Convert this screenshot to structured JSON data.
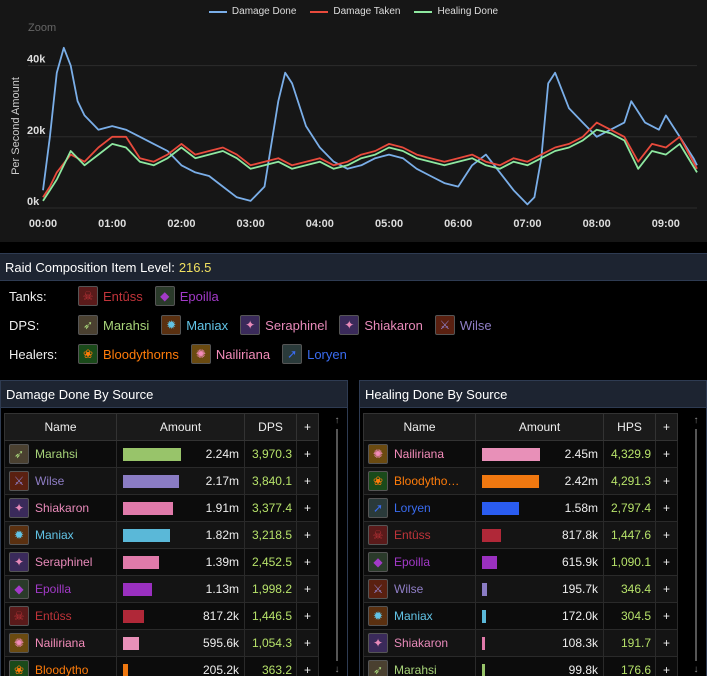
{
  "chart_data": {
    "type": "line",
    "legend": [
      "Damage Done",
      "Damage Taken",
      "Healing Done"
    ],
    "colors": [
      "#7aaee8",
      "#e84a3c",
      "#8ee8a0"
    ],
    "ylabel": "Per Second Amount",
    "zoom_label": "Zoom",
    "yticks": [
      "40k",
      "20k",
      "0k"
    ],
    "ytick_values": [
      40000,
      20000,
      0
    ],
    "ylim": [
      0,
      50000
    ],
    "xticks": [
      "00:00",
      "01:00",
      "02:00",
      "03:00",
      "04:00",
      "05:00",
      "06:00",
      "07:00",
      "08:00",
      "09:00"
    ],
    "xlim_minutes": [
      0,
      9.45
    ],
    "series": [
      {
        "name": "Damage Done",
        "x": [
          0,
          0.1,
          0.2,
          0.3,
          0.4,
          0.5,
          0.6,
          0.8,
          1.0,
          1.2,
          1.4,
          1.6,
          1.8,
          2.0,
          2.2,
          2.4,
          2.6,
          2.8,
          3.0,
          3.2,
          3.4,
          3.5,
          3.6,
          3.8,
          4.0,
          4.2,
          4.4,
          4.6,
          4.8,
          5.0,
          5.2,
          5.4,
          5.6,
          5.8,
          6.0,
          6.2,
          6.4,
          6.6,
          6.8,
          7.0,
          7.1,
          7.2,
          7.3,
          7.4,
          7.6,
          7.8,
          8.0,
          8.2,
          8.4,
          8.5,
          8.7,
          8.9,
          9.0,
          9.2,
          9.4,
          9.45
        ],
        "y": [
          5000,
          20000,
          38000,
          45000,
          40000,
          30000,
          26000,
          22000,
          23000,
          22000,
          20000,
          18000,
          16000,
          12000,
          10000,
          9000,
          6000,
          3000,
          2000,
          6000,
          30000,
          38000,
          35000,
          23000,
          17000,
          13000,
          11000,
          12000,
          14000,
          15000,
          14000,
          11000,
          9000,
          7000,
          6000,
          12000,
          15000,
          10000,
          5000,
          1000,
          3000,
          14000,
          35000,
          38000,
          28000,
          24000,
          20000,
          22000,
          24000,
          30000,
          24000,
          22000,
          26000,
          20000,
          14000,
          12000
        ]
      },
      {
        "name": "Damage Taken",
        "x": [
          0,
          0.1,
          0.2,
          0.4,
          0.6,
          0.8,
          1.0,
          1.2,
          1.4,
          1.6,
          1.8,
          2.0,
          2.2,
          2.4,
          2.6,
          2.8,
          3.0,
          3.2,
          3.4,
          3.6,
          3.8,
          4.0,
          4.2,
          4.4,
          4.6,
          4.8,
          5.0,
          5.2,
          5.4,
          5.6,
          5.8,
          6.0,
          6.2,
          6.4,
          6.6,
          6.8,
          7.0,
          7.2,
          7.4,
          7.6,
          7.8,
          8.0,
          8.2,
          8.4,
          8.6,
          8.8,
          9.0,
          9.2,
          9.45
        ],
        "y": [
          3000,
          6000,
          10000,
          15000,
          13000,
          17000,
          20000,
          20000,
          14000,
          13000,
          15000,
          18000,
          15000,
          16000,
          17000,
          15000,
          12000,
          13000,
          14000,
          12000,
          13000,
          14000,
          12000,
          13000,
          15000,
          16000,
          18000,
          17000,
          15000,
          14000,
          13000,
          14000,
          15000,
          13000,
          12000,
          14000,
          13000,
          15000,
          17000,
          18000,
          20000,
          24000,
          22000,
          20000,
          13000,
          18000,
          17000,
          20000,
          11000
        ]
      },
      {
        "name": "Healing Done",
        "x": [
          0,
          0.1,
          0.2,
          0.4,
          0.6,
          0.8,
          1.0,
          1.2,
          1.4,
          1.6,
          1.8,
          2.0,
          2.2,
          2.4,
          2.6,
          2.8,
          3.0,
          3.2,
          3.4,
          3.6,
          3.8,
          4.0,
          4.2,
          4.4,
          4.6,
          4.8,
          5.0,
          5.2,
          5.4,
          5.6,
          5.8,
          6.0,
          6.2,
          6.4,
          6.6,
          6.8,
          7.0,
          7.2,
          7.4,
          7.6,
          7.8,
          8.0,
          8.2,
          8.4,
          8.6,
          8.8,
          9.0,
          9.2,
          9.45
        ],
        "y": [
          2000,
          5000,
          8000,
          16000,
          12000,
          15000,
          18000,
          17000,
          13000,
          12000,
          14000,
          17000,
          14000,
          15000,
          16000,
          14000,
          11000,
          12000,
          13000,
          11000,
          12000,
          13000,
          11000,
          12000,
          14000,
          15000,
          17000,
          16000,
          14000,
          13000,
          12000,
          13000,
          14000,
          12000,
          11000,
          13000,
          12000,
          14000,
          16000,
          17000,
          19000,
          22000,
          21000,
          19000,
          11000,
          16000,
          15000,
          18000,
          10000
        ]
      }
    ]
  },
  "composition": {
    "title": "Raid Composition Item Level:",
    "ilvl": "216.5",
    "rows": [
      {
        "label": "Tanks:",
        "members": [
          {
            "name": "Entûss",
            "color": "#c0343a",
            "icon": "blood-dk-icon",
            "glyph": "☠",
            "bg": "#5a1a1a"
          },
          {
            "name": "Epoilla",
            "color": "#a23ac8",
            "icon": "demon-hunter-icon",
            "glyph": "◆",
            "bg": "#2a3a2a"
          }
        ]
      },
      {
        "label": "DPS:",
        "members": [
          {
            "name": "Marahsi",
            "color": "#a8d47a",
            "icon": "hunter-icon",
            "glyph": "➶",
            "bg": "#4a4030"
          },
          {
            "name": "Maniax",
            "color": "#62c4e6",
            "icon": "fire-mage-icon",
            "glyph": "✹",
            "bg": "#5a3010"
          },
          {
            "name": "Seraphinel",
            "color": "#e88aba",
            "icon": "warlock-icon",
            "glyph": "✦",
            "bg": "#3a2a5a"
          },
          {
            "name": "Shiakaron",
            "color": "#e88aba",
            "icon": "shadow-icon",
            "glyph": "✦",
            "bg": "#3a2a5a"
          },
          {
            "name": "Wilse",
            "color": "#8f7ec6",
            "icon": "fury-warrior-icon",
            "glyph": "⚔",
            "bg": "#5a2010"
          }
        ]
      },
      {
        "label": "Healers:",
        "members": [
          {
            "name": "Bloodythorns",
            "color": "#ff7c0a",
            "icon": "druid-icon",
            "glyph": "❀",
            "bg": "#1a4a1a"
          },
          {
            "name": "Nailiriana",
            "color": "#f48cba",
            "icon": "holy-paladin-icon",
            "glyph": "✺",
            "bg": "#6a4a10"
          },
          {
            "name": "Loryen",
            "color": "#3a6cf0",
            "icon": "monk-icon",
            "glyph": "➚",
            "bg": "#2a3a3a"
          }
        ]
      }
    ]
  },
  "damage": {
    "title": "Damage Done By Source",
    "headers": [
      "Name",
      "Amount",
      "DPS",
      "+"
    ],
    "rows": [
      {
        "name": "Marahsi",
        "color": "#a8d47a",
        "icon": "hunter-icon",
        "glyph": "➶",
        "bg": "#4a4030",
        "amount": "2.24m",
        "rate": "3,970.3",
        "pct": 1.0,
        "barcolor": "#98c46a"
      },
      {
        "name": "Wilse",
        "color": "#8f7ec6",
        "icon": "fury-warrior-icon",
        "glyph": "⚔",
        "bg": "#5a2010",
        "amount": "2.17m",
        "rate": "3,840.1",
        "pct": 0.97,
        "barcolor": "#8a7cc4"
      },
      {
        "name": "Shiakaron",
        "color": "#e88aba",
        "icon": "shadow-icon",
        "glyph": "✦",
        "bg": "#3a2a5a",
        "amount": "1.91m",
        "rate": "3,377.4",
        "pct": 0.86,
        "barcolor": "#e07aaa"
      },
      {
        "name": "Maniax",
        "color": "#62c4e6",
        "icon": "fire-mage-icon",
        "glyph": "✹",
        "bg": "#5a3010",
        "amount": "1.82m",
        "rate": "3,218.5",
        "pct": 0.81,
        "barcolor": "#5ab8d8"
      },
      {
        "name": "Seraphinel",
        "color": "#e88aba",
        "icon": "warlock-icon",
        "glyph": "✦",
        "bg": "#3a2a5a",
        "amount": "1.39m",
        "rate": "2,452.5",
        "pct": 0.62,
        "barcolor": "#e07aaa"
      },
      {
        "name": "Epoilla",
        "color": "#a23ac8",
        "icon": "demon-hunter-icon",
        "glyph": "◆",
        "bg": "#2a3a2a",
        "amount": "1.13m",
        "rate": "1,998.2",
        "pct": 0.5,
        "barcolor": "#9a30c0"
      },
      {
        "name": "Entûss",
        "color": "#c0343a",
        "icon": "blood-dk-icon",
        "glyph": "☠",
        "bg": "#5a1a1a",
        "amount": "817.2k",
        "rate": "1,446.5",
        "pct": 0.36,
        "barcolor": "#b02838"
      },
      {
        "name": "Nailiriana",
        "color": "#f48cba",
        "icon": "holy-paladin-icon",
        "glyph": "✺",
        "bg": "#6a4a10",
        "amount": "595.6k",
        "rate": "1,054.3",
        "pct": 0.27,
        "barcolor": "#e890b8"
      },
      {
        "name": "Bloodytho",
        "color": "#ff7c0a",
        "icon": "druid-icon",
        "glyph": "❀",
        "bg": "#1a4a1a",
        "amount": "205.2k",
        "rate": "363.2",
        "pct": 0.09,
        "barcolor": "#f07810"
      }
    ]
  },
  "healing": {
    "title": "Healing Done By Source",
    "headers": [
      "Name",
      "Amount",
      "HPS",
      "+"
    ],
    "rows": [
      {
        "name": "Nailiriana",
        "color": "#f48cba",
        "icon": "holy-paladin-icon",
        "glyph": "✺",
        "bg": "#6a4a10",
        "amount": "2.45m",
        "rate": "4,329.9",
        "pct": 1.0,
        "barcolor": "#e890b8"
      },
      {
        "name": "Bloodytho…",
        "color": "#ff7c0a",
        "icon": "druid-icon",
        "glyph": "❀",
        "bg": "#1a4a1a",
        "amount": "2.42m",
        "rate": "4,291.3",
        "pct": 0.99,
        "barcolor": "#f07810"
      },
      {
        "name": "Loryen",
        "color": "#3a6cf0",
        "icon": "monk-icon",
        "glyph": "➚",
        "bg": "#2a3a3a",
        "amount": "1.58m",
        "rate": "2,797.4",
        "pct": 0.64,
        "barcolor": "#2a5cf0"
      },
      {
        "name": "Entûss",
        "color": "#c0343a",
        "icon": "blood-dk-icon",
        "glyph": "☠",
        "bg": "#5a1a1a",
        "amount": "817.8k",
        "rate": "1,447.6",
        "pct": 0.33,
        "barcolor": "#b02838"
      },
      {
        "name": "Epoilla",
        "color": "#a23ac8",
        "icon": "demon-hunter-icon",
        "glyph": "◆",
        "bg": "#2a3a2a",
        "amount": "615.9k",
        "rate": "1,090.1",
        "pct": 0.25,
        "barcolor": "#9a30c0"
      },
      {
        "name": "Wilse",
        "color": "#8f7ec6",
        "icon": "fury-warrior-icon",
        "glyph": "⚔",
        "bg": "#5a2010",
        "amount": "195.7k",
        "rate": "346.4",
        "pct": 0.08,
        "barcolor": "#8a7cc4"
      },
      {
        "name": "Maniax",
        "color": "#62c4e6",
        "icon": "fire-mage-icon",
        "glyph": "✹",
        "bg": "#5a3010",
        "amount": "172.0k",
        "rate": "304.5",
        "pct": 0.07,
        "barcolor": "#5ab8d8"
      },
      {
        "name": "Shiakaron",
        "color": "#e88aba",
        "icon": "shadow-icon",
        "glyph": "✦",
        "bg": "#3a2a5a",
        "amount": "108.3k",
        "rate": "191.7",
        "pct": 0.045,
        "barcolor": "#e07aaa"
      },
      {
        "name": "Marahsi",
        "color": "#a8d47a",
        "icon": "hunter-icon",
        "glyph": "➶",
        "bg": "#4a4030",
        "amount": "99.8k",
        "rate": "176.6",
        "pct": 0.04,
        "barcolor": "#98c46a"
      }
    ]
  },
  "scroll": {
    "up_glyph": "↑",
    "down_glyph": "↓"
  }
}
